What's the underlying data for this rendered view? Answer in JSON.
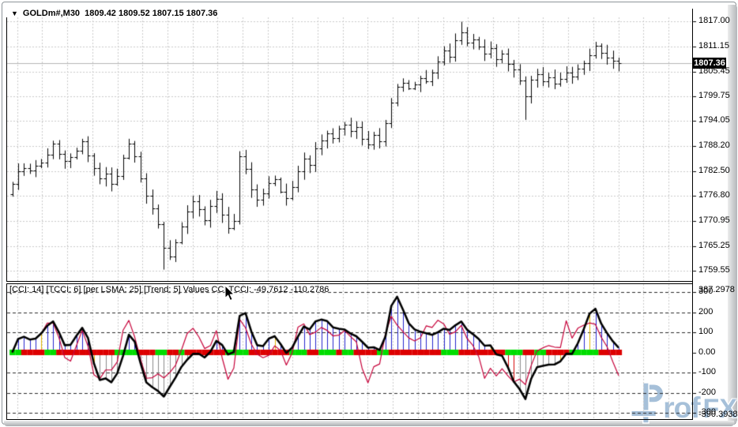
{
  "header": {
    "symbol_text": "GOLDm#,M30  1809.42 1809.52 1807.15 1807.36"
  },
  "price_axis": {
    "ticks": [
      "1817.00",
      "1811.15",
      "1805.45",
      "1799.75",
      "1794.05",
      "1788.20",
      "1782.50",
      "1776.80",
      "1770.95",
      "1765.25",
      "1759.55"
    ],
    "current": "1807.36"
  },
  "indicator_axis": {
    "max_label": "387.2978",
    "levels": [
      "300",
      "200",
      "100",
      "0.00",
      "-100",
      "-200",
      "-300"
    ],
    "min_label": "-390.3938"
  },
  "indicator_title": "[CCI: 14] [TCCI: 6] [per LSMA: 25] [Trend: 5] Values CCI TCCI: -49.7612 -110.2786",
  "watermark": {
    "rof": "rof",
    "fx": "FX"
  },
  "colors": {
    "bar": "#000000",
    "grid_light": "#c9c9c9",
    "grid_dark": "#2a2a2a",
    "current_line": "#b4b4b4",
    "hist_pos": "#2323cd",
    "hist_neg_red": "#d40000",
    "hist_neg_gray": "#8a8a8a",
    "hist_yellow": "#e3b500",
    "cci_line": "#000000",
    "tcci_line": "#c60039",
    "trend_up": "#00dd00",
    "trend_down": "#dd0000",
    "watermark": "#a6c0d9"
  },
  "chart_data": [
    {
      "type": "ohlc-bars",
      "symbol": "GOLDm#",
      "timeframe": "M30",
      "last_ohlc": [
        1809.42,
        1809.52,
        1807.15,
        1807.36
      ],
      "current_price": 1807.36,
      "axis_ticks": [
        1817.0,
        1811.15,
        1805.45,
        1799.75,
        1794.05,
        1788.2,
        1782.5,
        1776.8,
        1770.95,
        1765.25,
        1759.55
      ],
      "ylim": [
        1759.55,
        1817.0
      ],
      "grid": true,
      "closes": [
        1779.6,
        1782.4,
        1783.1,
        1782.6,
        1783.8,
        1784.5,
        1786.2,
        1788.8,
        1786.4,
        1784.9,
        1785.8,
        1787.2,
        1789.3,
        1786.1,
        1783.2,
        1780.8,
        1782.0,
        1779.6,
        1781.4,
        1785.6,
        1788.9,
        1786.0,
        1780.9,
        1776.8,
        1773.9,
        1770.2,
        1764.8,
        1762.9,
        1766.1,
        1769.8,
        1773.2,
        1775.6,
        1773.8,
        1771.2,
        1774.5,
        1776.1,
        1772.4,
        1769.3,
        1771.0,
        1785.9,
        1783.0,
        1778.2,
        1775.9,
        1777.4,
        1779.8,
        1780.6,
        1777.8,
        1776.2,
        1778.9,
        1782.4,
        1785.3,
        1783.9,
        1787.8,
        1789.6,
        1791.2,
        1790.1,
        1792.3,
        1793.1,
        1791.8,
        1792.6,
        1789.9,
        1788.7,
        1790.8,
        1789.4,
        1793.6,
        1798.2,
        1801.9,
        1802.8,
        1801.6,
        1802.4,
        1803.9,
        1803.1,
        1805.2,
        1807.8,
        1810.3,
        1808.9,
        1812.6,
        1814.4,
        1812.1,
        1812.9,
        1811.2,
        1809.5,
        1810.8,
        1808.3,
        1809.6,
        1807.1,
        1805.9,
        1803.4,
        1799.8,
        1803.6,
        1804.8,
        1803.2,
        1804.1,
        1802.6,
        1803.8,
        1805.2,
        1804.3,
        1806.1,
        1807.4,
        1809.2,
        1811.4,
        1809.8,
        1808.6,
        1807.9,
        1807.36
      ],
      "first_open": 1777.1,
      "wick_overrides": {
        "26": {
          "low": 1759.8
        },
        "39": {
          "low": 1770.2
        },
        "77": {
          "high": 1816.9
        },
        "88": {
          "low": 1794.3
        }
      }
    },
    {
      "type": "oscillator",
      "name": "CCI with TCCI, LSMA trend histogram",
      "cci_period": 14,
      "tcci_period": 6,
      "lsma_period": 25,
      "trend_period": 5,
      "last_values": [
        -49.7612,
        -110.2786
      ],
      "scale_max": 387.2978,
      "scale_min": -390.3938,
      "levels": [
        300,
        200,
        100,
        0,
        -100,
        -200,
        -300
      ],
      "trend": "ggrrrrggrrrrrrrrrrggggrrrggrrgrrrrrrrggggrrrrrrrgggrrgggrggrrrrggrrrrrrrrrgggrrrrrrrrgggrrggrrrrgggggrrrr",
      "yellow_bars": [
        5,
        14,
        45,
        82,
        94,
        99
      ]
    }
  ]
}
